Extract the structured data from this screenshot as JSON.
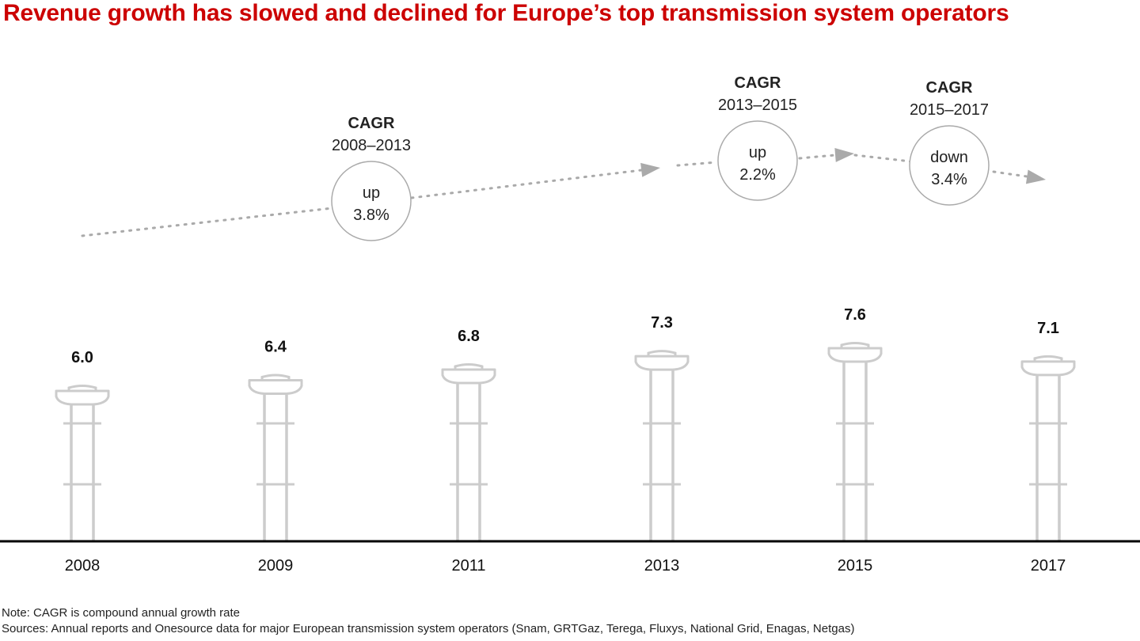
{
  "title": "Revenue growth has slowed and declined for Europe’s top transmission system operators",
  "colors": {
    "title": "#cc0000",
    "tower": "#cccccc",
    "arrow": "#aaaaaa",
    "circle": "#aaaaaa",
    "axis": "#000000"
  },
  "chart_data": {
    "type": "bar",
    "categories": [
      "2008",
      "2009",
      "2011",
      "2013",
      "2015",
      "2017"
    ],
    "values": [
      6.0,
      6.4,
      6.8,
      7.3,
      7.6,
      7.1
    ],
    "value_labels": [
      "6.0",
      "6.4",
      "6.8",
      "7.3",
      "7.6",
      "7.1"
    ],
    "mark_style": "transmission-tower",
    "annotations": [
      {
        "head": "CAGR",
        "period": "2008–2013",
        "line1": "up",
        "line2": "3.8%"
      },
      {
        "head": "CAGR",
        "period": "2013–2015",
        "line1": "up",
        "line2": "2.2%"
      },
      {
        "head": "CAGR",
        "period": "2015–2017",
        "line1": "down",
        "line2": "3.4%"
      }
    ]
  },
  "footnotes": {
    "note": "Note: CAGR is compound annual growth rate",
    "sources": "Sources: Annual reports and Onesource data for major European transmission system operators (Snam, GRTGaz, Terega, Fluxys, National Grid, Enagas, Netgas)"
  }
}
